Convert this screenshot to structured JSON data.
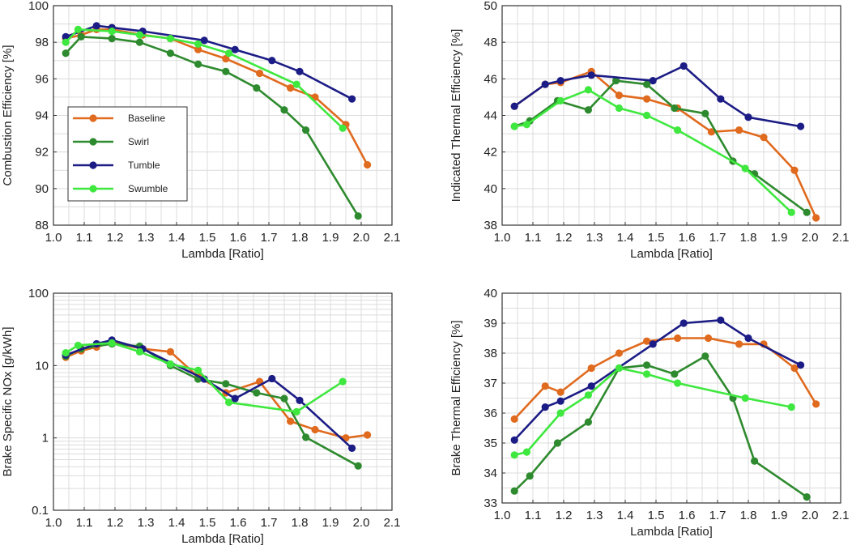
{
  "colors": {
    "Baseline": "#e06a1e",
    "Swirl": "#2e8a2e",
    "Tumble": "#1c1c86",
    "Swumble": "#3ee83e",
    "grid": "#dcdcdc",
    "frame": "#333333"
  },
  "legend": {
    "items": [
      "Baseline",
      "Swirl",
      "Tumble",
      "Swumble"
    ],
    "placement": "left-center of top-left panel"
  },
  "chart_data": [
    {
      "type": "line",
      "panel": "top-left",
      "title": "",
      "xlabel": "Lambda [Ratio]",
      "ylabel": "Combustion Efficiency [%]",
      "xlim": [
        1.0,
        2.1
      ],
      "ylim": [
        88,
        100
      ],
      "yscale": "linear",
      "xticks": [
        "1.0",
        "1.1",
        "1.2",
        "1.3",
        "1.4",
        "1.5",
        "1.6",
        "1.7",
        "1.8",
        "1.9",
        "2.0",
        "2.1"
      ],
      "yticks": [
        "88",
        "90",
        "92",
        "94",
        "96",
        "98",
        "100"
      ],
      "grid": true,
      "series": [
        {
          "name": "Baseline",
          "x": [
            1.04,
            1.09,
            1.14,
            1.19,
            1.29,
            1.38,
            1.47,
            1.56,
            1.67,
            1.77,
            1.85,
            1.95,
            2.02
          ],
          "y": [
            98.2,
            98.4,
            98.7,
            98.7,
            98.4,
            98.2,
            97.6,
            97.1,
            96.3,
            95.5,
            95.0,
            93.5,
            91.3
          ]
        },
        {
          "name": "Swirl",
          "x": [
            1.04,
            1.09,
            1.19,
            1.28,
            1.38,
            1.47,
            1.56,
            1.66,
            1.75,
            1.82,
            1.99
          ],
          "y": [
            97.4,
            98.3,
            98.2,
            98.0,
            97.4,
            96.8,
            96.4,
            95.5,
            94.3,
            93.2,
            88.5
          ]
        },
        {
          "name": "Tumble",
          "x": [
            1.04,
            1.14,
            1.19,
            1.29,
            1.49,
            1.59,
            1.71,
            1.8,
            1.97
          ],
          "y": [
            98.3,
            98.9,
            98.8,
            98.6,
            98.1,
            97.6,
            97.0,
            96.4,
            94.9
          ]
        },
        {
          "name": "Swumble",
          "x": [
            1.04,
            1.08,
            1.19,
            1.28,
            1.38,
            1.47,
            1.57,
            1.79,
            1.94
          ],
          "y": [
            98.0,
            98.7,
            98.6,
            98.4,
            98.2,
            97.9,
            97.4,
            95.7,
            93.3
          ]
        }
      ]
    },
    {
      "type": "line",
      "panel": "top-right",
      "title": "",
      "xlabel": "Lambda [Ratio]",
      "ylabel": "Indicated Thermal Efficiency [%]",
      "xlim": [
        1.0,
        2.1
      ],
      "ylim": [
        38,
        50
      ],
      "yscale": "linear",
      "xticks": [
        "1.0",
        "1.1",
        "1.2",
        "1.3",
        "1.4",
        "1.5",
        "1.6",
        "1.7",
        "1.8",
        "1.9",
        "2.0",
        "2.1"
      ],
      "yticks": [
        "38",
        "40",
        "42",
        "44",
        "46",
        "48",
        "50"
      ],
      "grid": true,
      "series": [
        {
          "name": "Baseline",
          "x": [
            1.04,
            1.14,
            1.19,
            1.29,
            1.38,
            1.47,
            1.57,
            1.68,
            1.77,
            1.85,
            1.95,
            2.02
          ],
          "y": [
            44.5,
            45.7,
            45.8,
            46.4,
            45.1,
            44.9,
            44.4,
            43.1,
            43.2,
            42.8,
            41.0,
            38.4
          ]
        },
        {
          "name": "Swirl",
          "x": [
            1.04,
            1.09,
            1.18,
            1.28,
            1.37,
            1.47,
            1.56,
            1.66,
            1.75,
            1.82,
            1.99
          ],
          "y": [
            43.4,
            43.7,
            44.8,
            44.3,
            45.9,
            45.7,
            44.4,
            44.1,
            41.5,
            40.8,
            38.7
          ]
        },
        {
          "name": "Tumble",
          "x": [
            1.04,
            1.14,
            1.19,
            1.29,
            1.49,
            1.59,
            1.71,
            1.8,
            1.97
          ],
          "y": [
            44.5,
            45.7,
            45.9,
            46.2,
            45.9,
            46.7,
            44.9,
            43.9,
            43.4
          ]
        },
        {
          "name": "Swumble",
          "x": [
            1.04,
            1.08,
            1.19,
            1.28,
            1.38,
            1.47,
            1.57,
            1.79,
            1.94
          ],
          "y": [
            43.4,
            43.5,
            44.8,
            45.4,
            44.4,
            44.0,
            43.2,
            41.1,
            38.7
          ]
        }
      ]
    },
    {
      "type": "line",
      "panel": "bottom-left",
      "title": "",
      "xlabel": "Lambda [Ratio]",
      "ylabel": "Brake Specific NOx [g/kWh]",
      "xlim": [
        1.0,
        2.1
      ],
      "ylim": [
        0.1,
        100
      ],
      "yscale": "log",
      "xticks": [
        "1.0",
        "1.1",
        "1.2",
        "1.3",
        "1.4",
        "1.5",
        "1.6",
        "1.7",
        "1.8",
        "1.9",
        "2.0",
        "2.1"
      ],
      "yticks": [
        "0.1",
        "1",
        "10",
        "100"
      ],
      "grid": true,
      "series": [
        {
          "name": "Baseline",
          "x": [
            1.04,
            1.09,
            1.14,
            1.19,
            1.29,
            1.38,
            1.47,
            1.56,
            1.67,
            1.77,
            1.85,
            1.95,
            2.02
          ],
          "y": [
            13,
            16,
            18,
            21,
            17,
            15.5,
            7,
            4.2,
            6,
            1.7,
            1.3,
            1.0,
            1.1
          ]
        },
        {
          "name": "Swirl",
          "x": [
            1.04,
            1.09,
            1.19,
            1.28,
            1.38,
            1.47,
            1.56,
            1.66,
            1.75,
            1.82,
            1.99
          ],
          "y": [
            13.5,
            17,
            20,
            18.5,
            10,
            6.5,
            5.6,
            4.2,
            3.5,
            1.02,
            0.41
          ]
        },
        {
          "name": "Tumble",
          "x": [
            1.04,
            1.14,
            1.19,
            1.29,
            1.49,
            1.59,
            1.71,
            1.8,
            1.97
          ],
          "y": [
            14,
            20,
            22.5,
            17,
            6.5,
            3.5,
            6.6,
            3.3,
            0.72
          ]
        },
        {
          "name": "Swumble",
          "x": [
            1.04,
            1.08,
            1.19,
            1.28,
            1.38,
            1.47,
            1.57,
            1.79,
            1.94
          ],
          "y": [
            15,
            19,
            20.5,
            15.5,
            10.5,
            8.6,
            3.1,
            2.3,
            6.0
          ]
        }
      ]
    },
    {
      "type": "line",
      "panel": "bottom-right",
      "title": "",
      "xlabel": "Lambda [Ratio]",
      "ylabel": "Brake Thermal Efficiency [%]",
      "xlim": [
        1.0,
        2.1
      ],
      "ylim": [
        33,
        40
      ],
      "yscale": "linear",
      "xticks": [
        "1.0",
        "1.1",
        "1.2",
        "1.3",
        "1.4",
        "1.5",
        "1.6",
        "1.7",
        "1.8",
        "1.9",
        "2.0",
        "2.1"
      ],
      "yticks": [
        "33",
        "34",
        "35",
        "36",
        "37",
        "38",
        "39",
        "40"
      ],
      "grid": true,
      "series": [
        {
          "name": "Baseline",
          "x": [
            1.04,
            1.14,
            1.19,
            1.29,
            1.38,
            1.47,
            1.57,
            1.67,
            1.77,
            1.85,
            1.95,
            2.02
          ],
          "y": [
            35.8,
            36.9,
            36.7,
            37.5,
            38.0,
            38.4,
            38.5,
            38.5,
            38.3,
            38.3,
            37.5,
            36.3
          ]
        },
        {
          "name": "Swirl",
          "x": [
            1.04,
            1.09,
            1.18,
            1.28,
            1.38,
            1.47,
            1.56,
            1.66,
            1.75,
            1.82,
            1.99
          ],
          "y": [
            33.4,
            33.9,
            35.0,
            35.7,
            37.5,
            37.6,
            37.3,
            37.9,
            36.5,
            34.4,
            33.2
          ]
        },
        {
          "name": "Tumble",
          "x": [
            1.04,
            1.14,
            1.19,
            1.29,
            1.49,
            1.59,
            1.71,
            1.8,
            1.97
          ],
          "y": [
            35.1,
            36.2,
            36.4,
            36.9,
            38.3,
            39.0,
            39.1,
            38.5,
            37.6
          ]
        },
        {
          "name": "Swumble",
          "x": [
            1.04,
            1.08,
            1.19,
            1.28,
            1.38,
            1.47,
            1.57,
            1.79,
            1.94
          ],
          "y": [
            34.6,
            34.7,
            36.0,
            36.6,
            37.5,
            37.3,
            37.0,
            36.5,
            36.2
          ]
        }
      ]
    }
  ]
}
